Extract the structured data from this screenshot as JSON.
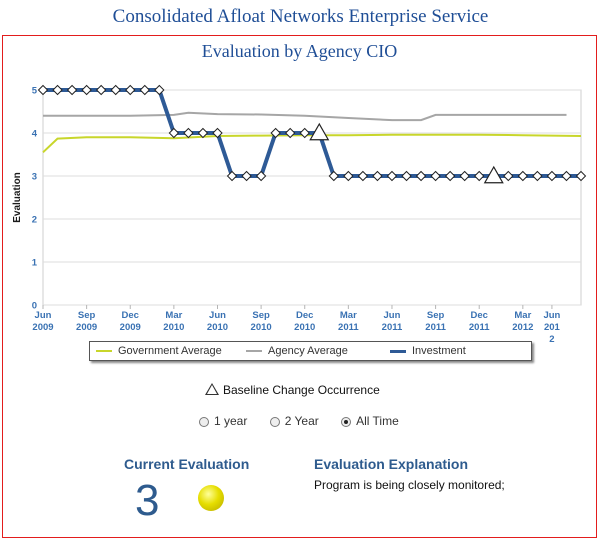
{
  "page_title": "Consolidated Afloat Networks Enterprise Service",
  "chart_data": {
    "type": "line",
    "title": "Evaluation by Agency CIO",
    "ylabel": "Evaluation",
    "xlabel": "",
    "ylim": [
      0,
      5
    ],
    "yticks": [
      "0",
      "1",
      "2",
      "3",
      "4",
      "5"
    ],
    "x_ticks": [
      {
        "line1": "Jun",
        "line2": "2009",
        "line3": "",
        "idx": 0
      },
      {
        "line1": "Sep",
        "line2": "2009",
        "line3": "",
        "idx": 3
      },
      {
        "line1": "Dec",
        "line2": "2009",
        "line3": "",
        "idx": 6
      },
      {
        "line1": "Mar",
        "line2": "2010",
        "line3": "",
        "idx": 9
      },
      {
        "line1": "Jun",
        "line2": "2010",
        "line3": "",
        "idx": 12
      },
      {
        "line1": "Sep",
        "line2": "2010",
        "line3": "",
        "idx": 15
      },
      {
        "line1": "Dec",
        "line2": "2010",
        "line3": "",
        "idx": 18
      },
      {
        "line1": "Mar",
        "line2": "2011",
        "line3": "",
        "idx": 21
      },
      {
        "line1": "Jun",
        "line2": "2011",
        "line3": "",
        "idx": 24
      },
      {
        "line1": "Sep",
        "line2": "2011",
        "line3": "",
        "idx": 27
      },
      {
        "line1": "Dec",
        "line2": "2011",
        "line3": "",
        "idx": 30
      },
      {
        "line1": "Mar",
        "line2": "2012",
        "line3": "",
        "idx": 33
      },
      {
        "line1": "Jun",
        "line2": "201",
        "line3": "2",
        "idx": 35
      }
    ],
    "series": [
      {
        "name": "Government Average",
        "color": "#c8d62b",
        "points": [
          [
            0,
            3.55
          ],
          [
            1,
            3.87
          ],
          [
            3,
            3.9
          ],
          [
            6,
            3.9
          ],
          [
            9,
            3.88
          ],
          [
            12,
            3.93
          ],
          [
            15,
            3.94
          ],
          [
            18,
            3.95
          ],
          [
            21,
            3.95
          ],
          [
            24,
            3.96
          ],
          [
            27,
            3.96
          ],
          [
            30,
            3.96
          ],
          [
            33,
            3.95
          ],
          [
            35,
            3.94
          ],
          [
            37,
            3.93
          ]
        ]
      },
      {
        "name": "Agency Average",
        "color": "#a6a6a6",
        "points": [
          [
            0,
            4.4
          ],
          [
            3,
            4.4
          ],
          [
            6,
            4.4
          ],
          [
            9,
            4.42
          ],
          [
            10,
            4.47
          ],
          [
            12,
            4.44
          ],
          [
            15,
            4.43
          ],
          [
            18,
            4.4
          ],
          [
            21,
            4.35
          ],
          [
            24,
            4.3
          ],
          [
            26,
            4.3
          ],
          [
            27,
            4.42
          ],
          [
            30,
            4.42
          ],
          [
            33,
            4.42
          ],
          [
            36,
            4.42
          ]
        ]
      },
      {
        "name": "Investment",
        "color": "#2e5a96",
        "values": [
          5,
          5,
          5,
          5,
          5,
          5,
          5,
          5,
          5,
          4,
          4,
          4,
          4,
          3,
          3,
          3,
          4,
          4,
          4,
          4,
          3,
          3,
          3,
          3,
          3,
          3,
          3,
          3,
          3,
          3,
          3,
          3,
          3,
          3,
          3,
          3,
          3,
          3
        ]
      }
    ],
    "baseline_changes": [
      19,
      31
    ],
    "legend": [
      "Government Average",
      "Agency Average",
      "Investment"
    ],
    "baseline_label": "Baseline Change Occurrence"
  },
  "range_options": [
    {
      "label": "1 year",
      "checked": false
    },
    {
      "label": "2 Year",
      "checked": false
    },
    {
      "label": "All Time",
      "checked": true
    }
  ],
  "current_evaluation": {
    "title": "Current Evaluation",
    "value": "3",
    "status_color": "#e0d400"
  },
  "evaluation_explanation": {
    "title": "Evaluation Explanation",
    "text": "Program is being closely monitored;"
  }
}
